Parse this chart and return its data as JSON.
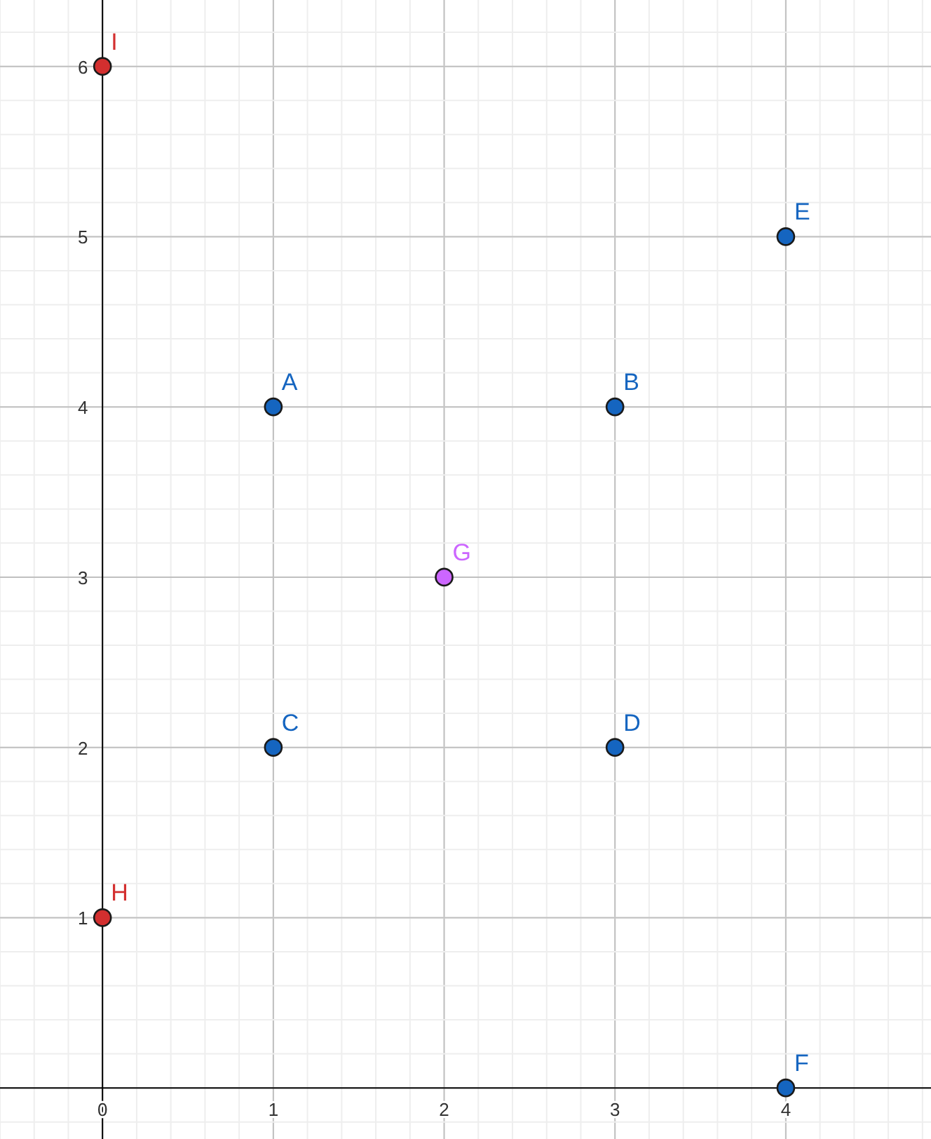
{
  "chart_data": {
    "type": "scatter",
    "xlim": [
      -0.6,
      4.85
    ],
    "ylim": [
      -0.3,
      6.39
    ],
    "xticks": [
      0,
      1,
      2,
      3,
      4
    ],
    "yticks": [
      1,
      2,
      3,
      4,
      5,
      6
    ],
    "grid": true,
    "marker": "circle",
    "series": [
      {
        "color": "#1565c0",
        "x": [
          1,
          3,
          1,
          3,
          4,
          4
        ],
        "values": [
          4,
          4,
          2,
          2,
          5,
          0
        ],
        "value_labels": [
          "A",
          "B",
          "C",
          "D",
          "E",
          "F"
        ]
      },
      {
        "color": "#cc66ff",
        "x": [
          2
        ],
        "values": [
          3
        ],
        "value_labels": [
          "G"
        ]
      },
      {
        "color": "#d32f2f",
        "x": [
          0,
          0
        ],
        "values": [
          1,
          6
        ],
        "value_labels": [
          "H",
          "I"
        ]
      }
    ]
  }
}
